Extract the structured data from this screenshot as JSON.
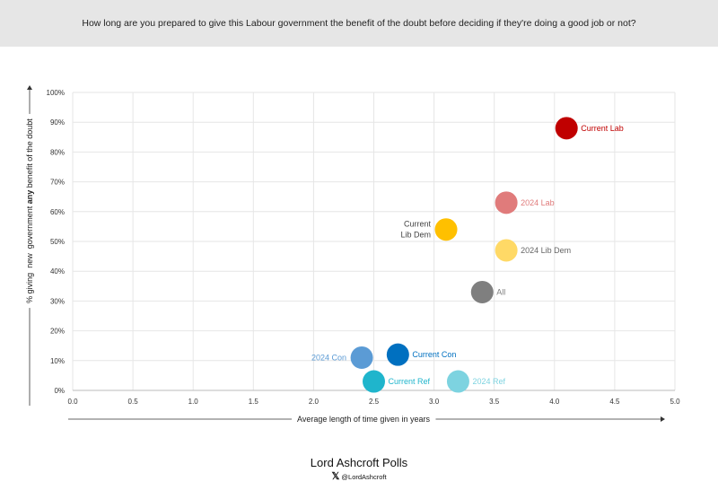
{
  "header": {
    "question": "How long are you prepared to give this Labour government the benefit of the doubt before deciding if they're doing a good job or not?"
  },
  "chart_data": {
    "type": "scatter",
    "title": "How long are you prepared to give this Labour government the benefit of the doubt before deciding if they're doing a good job or not?",
    "xlabel": "Average length of time given in years",
    "ylabel_parts": [
      "% giving  new  government ",
      "any",
      " benefit of the doubt"
    ],
    "xlim": [
      0,
      5
    ],
    "ylim": [
      0,
      100
    ],
    "xticks": [
      "0.0",
      "0.5",
      "1.0",
      "1.5",
      "2.0",
      "2.5",
      "3.0",
      "3.5",
      "4.0",
      "4.5",
      "5.0"
    ],
    "yticks": [
      "0%",
      "10%",
      "20%",
      "30%",
      "40%",
      "50%",
      "60%",
      "70%",
      "80%",
      "90%",
      "100%"
    ],
    "grid": true,
    "points": [
      {
        "label": "Current Lab",
        "x": 4.1,
        "y": 88,
        "color": "#c00000",
        "pos": "right"
      },
      {
        "label": "2024 Lab",
        "x": 3.6,
        "y": 63,
        "color": "#e07b7b",
        "pos": "right"
      },
      {
        "label": "Current Lib Dem",
        "x": 3.1,
        "y": 54,
        "color": "#ffc000",
        "pos": "left",
        "textColor": "#444"
      },
      {
        "label": "2024 Lib Dem",
        "x": 3.6,
        "y": 47,
        "color": "#ffd966",
        "pos": "right",
        "textColor": "#666"
      },
      {
        "label": "All",
        "x": 3.4,
        "y": 33,
        "color": "#7f7f7f",
        "pos": "right"
      },
      {
        "label": "Current Con",
        "x": 2.7,
        "y": 12,
        "color": "#0070c0",
        "pos": "right"
      },
      {
        "label": "2024 Con",
        "x": 2.4,
        "y": 11,
        "color": "#5b9bd5",
        "pos": "left"
      },
      {
        "label": "Current Ref",
        "x": 2.5,
        "y": 3,
        "color": "#1fb5cc",
        "pos": "right"
      },
      {
        "label": "2024 Ref",
        "x": 3.2,
        "y": 3,
        "color": "#7dd3e0",
        "pos": "right"
      }
    ]
  },
  "footer": {
    "brand": "Lord Ashcroft Polls",
    "handle": "@LordAshcroft"
  }
}
